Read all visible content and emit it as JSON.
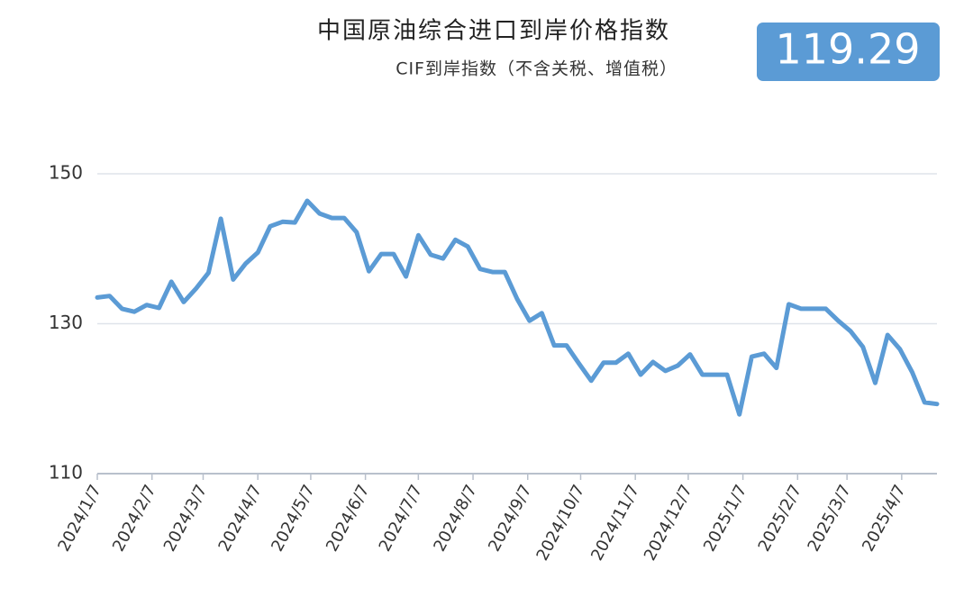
{
  "chart_data": {
    "type": "line",
    "title": "中国原油综合进口到岸价格指数",
    "subtitle": "CIF到岸指数（不含关税、增值税）",
    "latest_value": 119.29,
    "x": [
      "2024/1/7",
      "2024/1/14",
      "2024/1/21",
      "2024/1/28",
      "2024/2/4",
      "2024/2/11",
      "2024/2/18",
      "2024/2/25",
      "2024/3/3",
      "2024/3/10",
      "2024/3/17",
      "2024/3/24",
      "2024/3/31",
      "2024/4/7",
      "2024/4/14",
      "2024/4/21",
      "2024/4/28",
      "2024/5/5",
      "2024/5/12",
      "2024/5/19",
      "2024/5/26",
      "2024/6/2",
      "2024/6/9",
      "2024/6/16",
      "2024/6/23",
      "2024/6/30",
      "2024/7/7",
      "2024/7/14",
      "2024/7/21",
      "2024/7/28",
      "2024/8/4",
      "2024/8/11",
      "2024/8/18",
      "2024/8/25",
      "2024/9/1",
      "2024/9/8",
      "2024/9/15",
      "2024/9/22",
      "2024/9/29",
      "2024/10/6",
      "2024/10/13",
      "2024/10/20",
      "2024/10/27",
      "2024/11/3",
      "2024/11/10",
      "2024/11/17",
      "2024/11/24",
      "2024/12/1",
      "2024/12/8",
      "2024/12/15",
      "2024/12/22",
      "2024/12/29",
      "2025/1/5",
      "2025/1/12",
      "2025/1/19",
      "2025/1/26",
      "2025/2/2",
      "2025/2/9",
      "2025/2/16",
      "2025/2/23",
      "2025/3/2",
      "2025/3/9",
      "2025/3/16",
      "2025/3/23",
      "2025/3/30",
      "2025/4/6",
      "2025/4/13",
      "2025/4/20",
      "2025/4/27"
    ],
    "series": [
      {
        "color": "#5b9bd5",
        "values": [
          133.5,
          133.7,
          132.0,
          131.6,
          132.5,
          132.1,
          135.6,
          132.9,
          134.7,
          136.8,
          144.0,
          135.9,
          138.0,
          139.5,
          143.0,
          143.6,
          143.5,
          146.4,
          144.7,
          144.1,
          144.1,
          142.2,
          137.0,
          139.3,
          139.3,
          136.3,
          141.8,
          139.2,
          138.7,
          141.2,
          140.3,
          137.3,
          136.9,
          136.9,
          133.3,
          130.4,
          131.4,
          127.1,
          127.1,
          124.7,
          122.4,
          124.8,
          124.8,
          126.0,
          123.2,
          124.9,
          123.7,
          124.4,
          125.9,
          123.2,
          123.2,
          123.2,
          117.9,
          125.6,
          126.0,
          124.1,
          132.6,
          132.0,
          132.0,
          132.0,
          130.4,
          129.0,
          126.9,
          122.1,
          128.5,
          126.6,
          123.5,
          119.5,
          119.29
        ]
      }
    ],
    "xlim": [
      "2024/1/7",
      "2025/4/27"
    ],
    "xticks": [
      "2024/1/7",
      "2024/2/7",
      "2024/3/7",
      "2024/4/7",
      "2024/5/7",
      "2024/6/7",
      "2024/7/7",
      "2024/8/7",
      "2024/9/7",
      "2024/10/7",
      "2024/11/7",
      "2024/12/7",
      "2025/1/7",
      "2025/2/7",
      "2025/3/7",
      "2025/4/7"
    ],
    "ylim": [
      110,
      150
    ],
    "yticks": [
      110,
      130,
      150
    ],
    "grid": true
  }
}
